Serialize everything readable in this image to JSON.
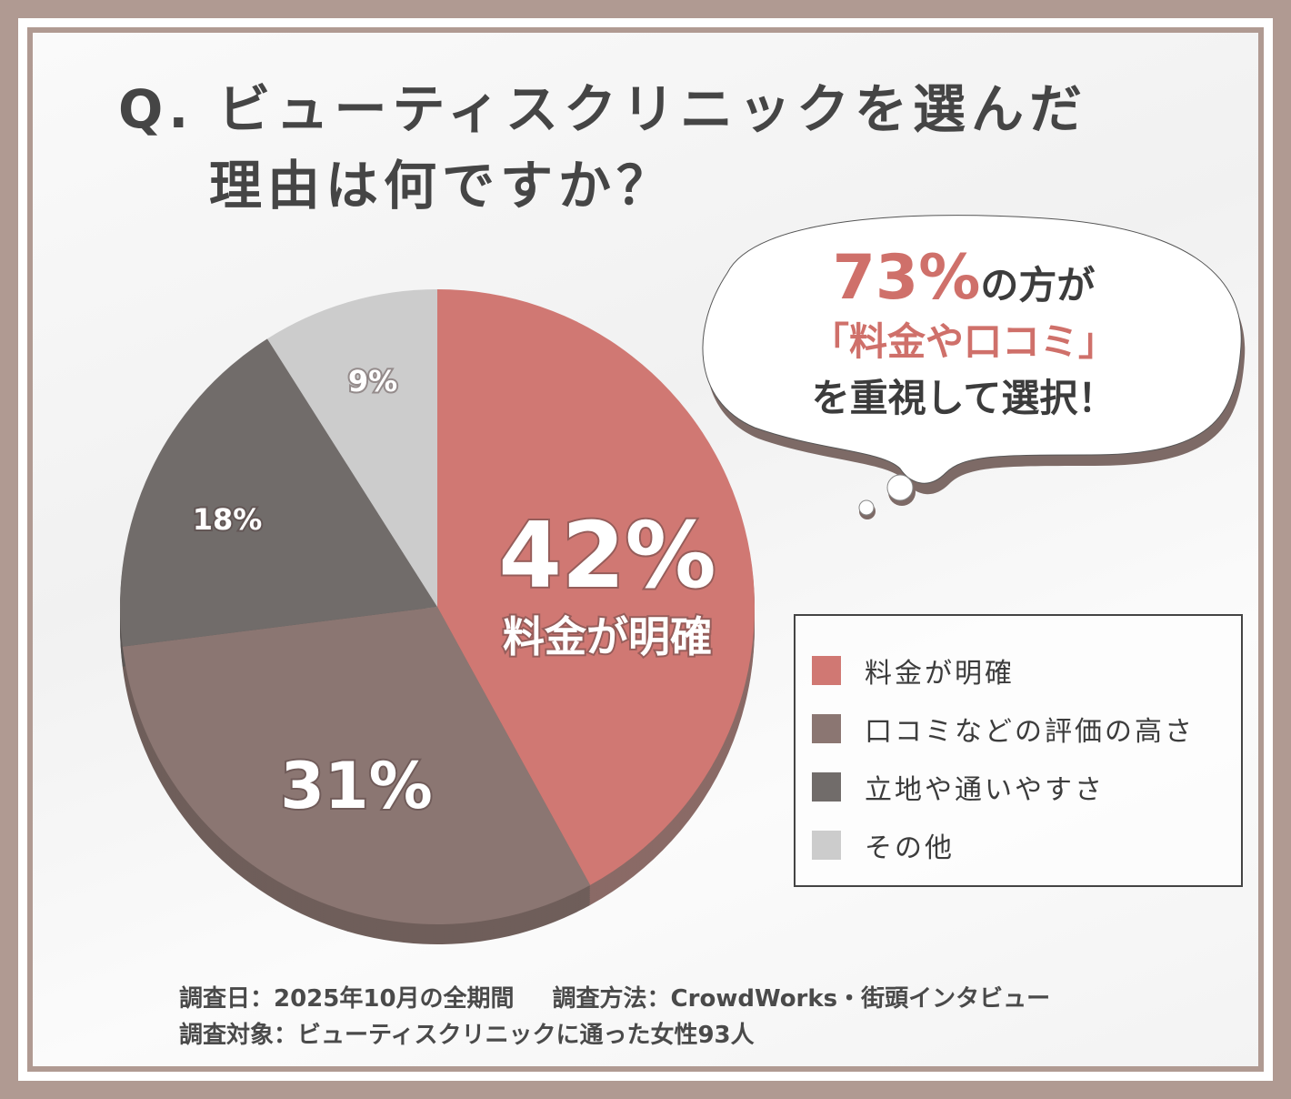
{
  "title": {
    "line1": "Q. ビューティスクリニックを選んだ",
    "line2": "理由は何ですか？"
  },
  "bubble": {
    "percent": "73%",
    "line1_suffix": "の方が",
    "line2": "「料金や口コミ」",
    "line3": "を重視して選択！"
  },
  "chart_data": {
    "type": "pie",
    "categories": [
      "料金が明確",
      "口コミなどの評価の高さ",
      "立地や通いやすさ",
      "その他"
    ],
    "values": [
      42,
      31,
      18,
      9
    ],
    "labels": [
      "42%",
      "31%",
      "18%",
      "9%"
    ],
    "slice_caption": "料金が明確",
    "colors": [
      "#d07873",
      "#8b7672",
      "#716c6a",
      "#cccccc"
    ],
    "shadow_colors": [
      "#8a6a66",
      "#6f5e5a",
      "#5a5553",
      "#a8a8a8"
    ],
    "start": "top",
    "direction": "clockwise",
    "legend": "right"
  },
  "footer": {
    "date": "調査日：2025年10月の全期間",
    "method": "調査方法：CrowdWorks・街頭インタビュー",
    "target": "調査対象：ビューティスクリニックに通った女性93人"
  }
}
